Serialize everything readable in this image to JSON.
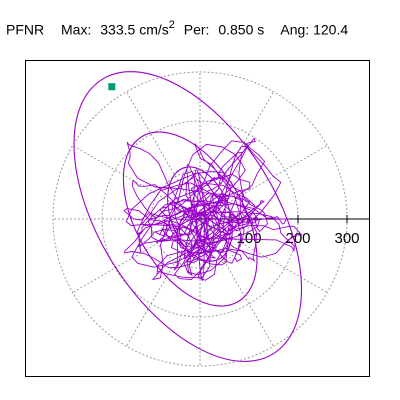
{
  "header": {
    "component": "PFNR",
    "max_label": "Max:",
    "max_value": "333.5",
    "max_unit": "cm/s",
    "max_unit_exp": "2",
    "per_label": "Per:",
    "per_value": "0.850",
    "per_unit": "s",
    "ang_label": "Ang:",
    "ang_value": "120.4"
  },
  "chart_data": {
    "type": "polar-orbit",
    "title": "",
    "xlabel": "",
    "ylabel": "",
    "tick_labels": [
      "100",
      "200",
      "300"
    ],
    "ring_values": [
      100,
      200,
      300
    ],
    "spoke_angles_deg": [
      0,
      30,
      60,
      90,
      120,
      150,
      180,
      210,
      240,
      270,
      300,
      330
    ],
    "trace_color": "#9900cc",
    "marker_color": "#009977",
    "marker_point": [
      -180,
      270
    ],
    "peak_value": 333.5,
    "peak_angle_deg": 120.4
  }
}
